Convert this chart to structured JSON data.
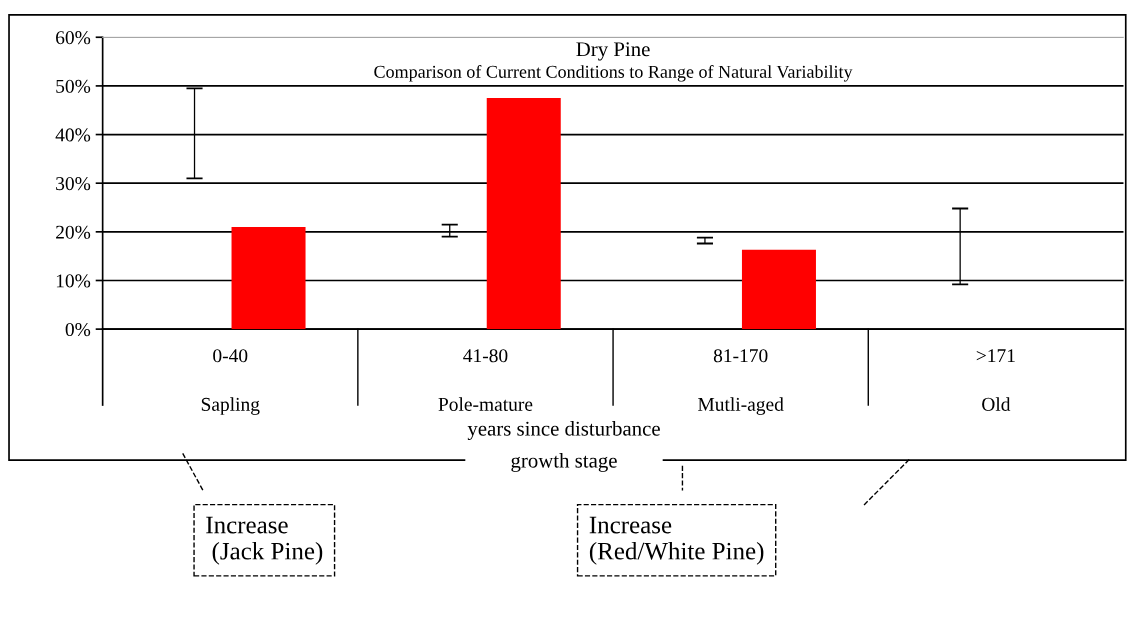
{
  "chart_data": {
    "type": "bar",
    "title": "Dry Pine",
    "subtitle": "Comparison of Current Conditions to Range of Natural Variability",
    "xlabel": "years since disturbance\ngrowth stage",
    "categories": [
      "0-40\nSapling",
      "41-80\nPole-mature",
      "81-170\nMutli-aged",
      ">171\nOld"
    ],
    "series": [
      {
        "color": "#000000",
        "base": [
          31,
          19,
          17.6,
          9.2
        ],
        "values": [
          18.5,
          2.5,
          1.2,
          15.6
        ]
      },
      {
        "color": "#ff0000",
        "values": [
          21,
          47.5,
          16.3,
          null
        ]
      }
    ],
    "ylim": [
      0,
      60
    ],
    "yticks": [
      {
        "value": 0,
        "label": "0%"
      },
      {
        "value": 10,
        "label": "10%"
      },
      {
        "value": 20,
        "label": "20%"
      },
      {
        "value": 30,
        "label": "30%"
      },
      {
        "value": 40,
        "label": "40%"
      },
      {
        "value": 50,
        "label": "50%"
      },
      {
        "value": 60,
        "label": "60%"
      }
    ],
    "grid": "y",
    "legend": false,
    "annotations": [
      "Increase\n (Jack Pine)",
      "Increase\n(Red/White Pine)"
    ]
  }
}
